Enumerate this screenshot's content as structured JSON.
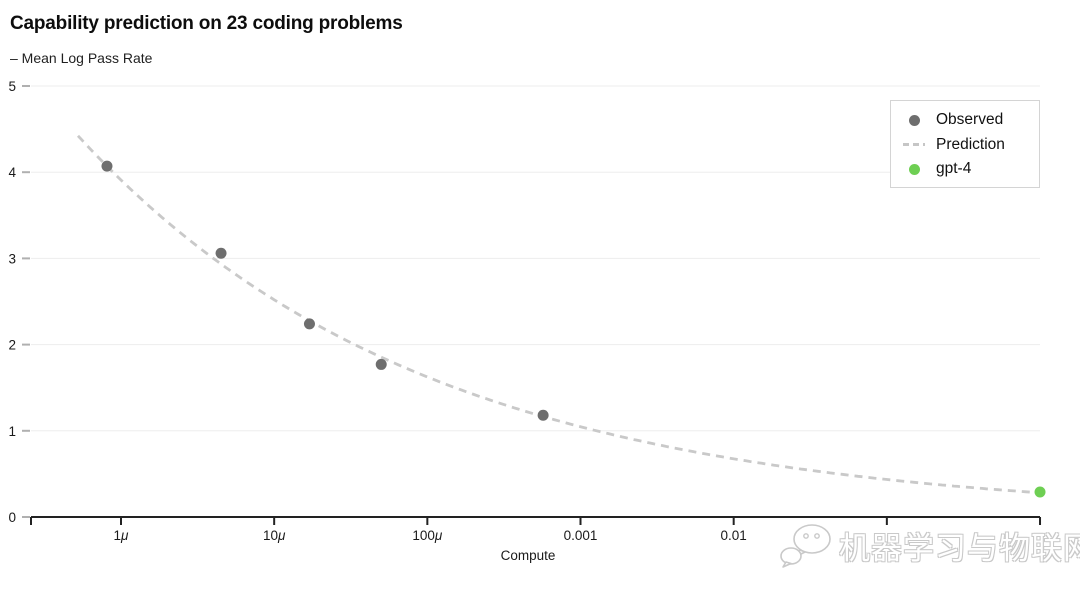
{
  "header": {
    "title": "Capability prediction on 23 coding problems",
    "subtitle": "– Mean Log Pass Rate"
  },
  "chart_data": {
    "type": "scatter",
    "title": "Capability prediction on 23 coding problems",
    "subtitle_series_label": "– Mean Log Pass Rate",
    "x_axis": {
      "label": "Compute",
      "scale": "log",
      "tick_labels": [
        "1μ",
        "10μ",
        "100μ",
        "0.001",
        "0.01"
      ],
      "tick_values": [
        1e-06,
        1e-05,
        0.0001,
        0.001,
        0.01
      ],
      "unlabeled_tick_values": [
        0.1,
        1
      ],
      "range": [
        2.6e-07,
        1.0
      ]
    },
    "y_axis": {
      "label": "Mean Log Pass Rate",
      "tick_values": [
        0,
        1,
        2,
        3,
        4,
        5
      ],
      "range": [
        0,
        5
      ],
      "grid": true
    },
    "series": [
      {
        "name": "Observed",
        "type": "scatter",
        "color": "#6e6e6e",
        "x": [
          8.1e-07,
          4.5e-06,
          1.7e-05,
          5e-05,
          0.00057
        ],
        "y": [
          4.07,
          3.06,
          2.24,
          1.77,
          1.18
        ]
      },
      {
        "name": "Prediction",
        "type": "dashed-line",
        "color": "#c9c9c9",
        "power_law": {
          "a": 0.2805,
          "b": -0.1907
        },
        "note": "mean_log_pass_rate = a * compute^b"
      },
      {
        "name": "gpt-4",
        "type": "scatter",
        "color": "#6ecf53",
        "x": [
          1.0
        ],
        "y": [
          0.29
        ]
      }
    ],
    "legend_position": "top-right"
  },
  "legend": {
    "entries": [
      {
        "label": "Observed",
        "marker": "dot",
        "color": "#6e6e6e"
      },
      {
        "label": "Prediction",
        "marker": "dash",
        "color": "#c9c9c9"
      },
      {
        "label": "gpt-4",
        "marker": "dot",
        "color": "#6ecf53"
      }
    ]
  },
  "watermark": {
    "icon": "wechat-icon",
    "text": "机器学习与物联网"
  },
  "colors": {
    "background": "#ffffff",
    "axis": "#222222",
    "gridline": "#ededed",
    "y_tick_dash": "#b0b0b0",
    "tick_label": "#1a1a1a",
    "observed": "#6e6e6e",
    "prediction": "#c9c9c9",
    "gpt4_green": "#6ecf53",
    "legend_border": "#d4d4d4",
    "watermark_outline": "#c9c9c9"
  }
}
